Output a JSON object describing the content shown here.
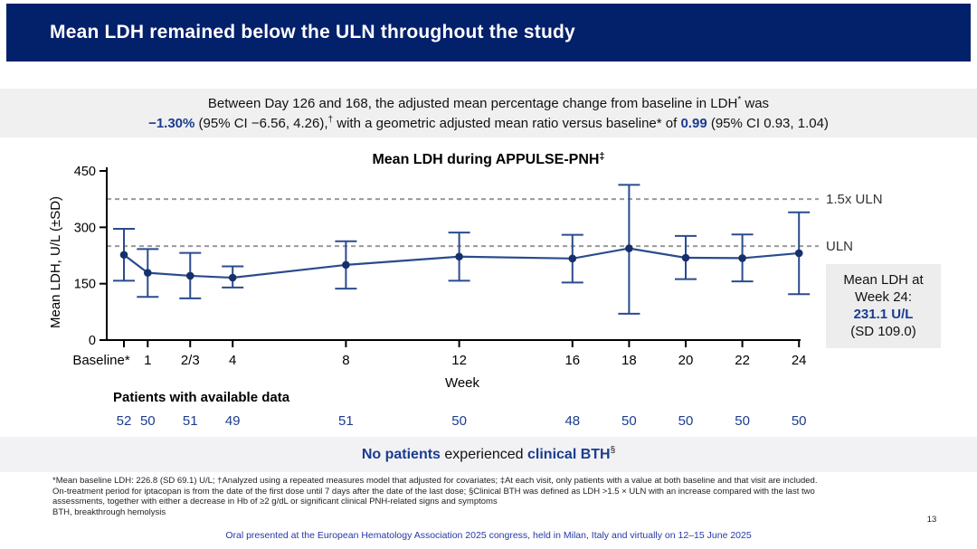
{
  "slide": {
    "title": "Mean LDH remained below the ULN throughout the study",
    "page_number": "13",
    "footer": "Oral presented at the European Hematology Association 2025 congress, held in Milan, Italy and virtually on 12–15 June 2025"
  },
  "colors": {
    "header_navy": "#03206B",
    "accent_navy": "#1B3C8F",
    "line_navy": "#2A4B8D",
    "marker_navy": "#16306B",
    "reference_gray": "#999999",
    "footer_blue": "#2638A8"
  },
  "summary": {
    "line1_text": "Between Day 126 and 168, the adjusted mean percentage change from baseline in LDH",
    "line1_sup": "*",
    "line1_end": " was",
    "line2_value1": "−1.30%",
    "line2_mid1": " (95% CI −6.56, 4.26),",
    "line2_sup": "†",
    "line2_mid2": " with a geometric adjusted mean ratio versus baseline* of ",
    "line2_value2": "0.99",
    "line2_end": " (95% CI 0.93, 1.04)"
  },
  "chart_data": {
    "type": "line",
    "title": "Mean LDH during APPULSE-PNH",
    "title_sup": "‡",
    "xlabel": "Week",
    "ylabel": "Mean LDH, U/L (±SD)",
    "ylim": [
      0,
      450
    ],
    "yticks": [
      0,
      150,
      300,
      450
    ],
    "x_tick_labels": [
      "Baseline*",
      "1",
      "2/3",
      "4",
      "8",
      "12",
      "16",
      "18",
      "20",
      "22",
      "24"
    ],
    "x_week_positions": [
      0.16,
      1,
      2.5,
      4,
      8,
      12,
      16,
      18,
      20,
      22,
      24
    ],
    "series": [
      {
        "name": "Mean LDH (±SD)",
        "mean": [
          226.8,
          179,
          171,
          166,
          200,
          222,
          217,
          244,
          219,
          218,
          231.1
        ],
        "sd_low": [
          158,
          115,
          111,
          140,
          137,
          158,
          153,
          70,
          162,
          156,
          122
        ],
        "sd_high": [
          296,
          242,
          232,
          196,
          263,
          286,
          280,
          413,
          277,
          281,
          340
        ]
      }
    ],
    "reference_lines": [
      {
        "label": "1.5x ULN",
        "value": 375
      },
      {
        "label": "ULN",
        "value": 250
      }
    ],
    "legend_position": "none",
    "grid": false
  },
  "patients": {
    "label": "Patients with available data",
    "values": [
      "52",
      "50",
      "51",
      "49",
      "51",
      "50",
      "48",
      "50",
      "50",
      "50",
      "50"
    ]
  },
  "week24_box": {
    "line1": "Mean LDH at",
    "line2": "Week 24:",
    "value": "231.1 U/L",
    "sd": "(SD 109.0)"
  },
  "bth": {
    "part1": "No patients",
    "part2": " experienced ",
    "part3": "clinical BTH",
    "sup": "§"
  },
  "footnotes": [
    "*Mean baseline LDH: 226.8 (SD 69.1) U/L; †Analyzed using a repeated measures model that adjusted for covariates; ‡At each visit, only patients with a value at both baseline and that visit are included.",
    "On-treatment period for iptacopan is from the date of the first dose until 7 days after the date of the last dose; §Clinical BTH was defined as LDH >1.5 × ULN with an increase compared with the last two",
    "assessments, together with either a decrease in Hb of ≥2 g/dL or significant clinical PNH-related signs and symptoms",
    "BTH, breakthrough hemolysis"
  ]
}
